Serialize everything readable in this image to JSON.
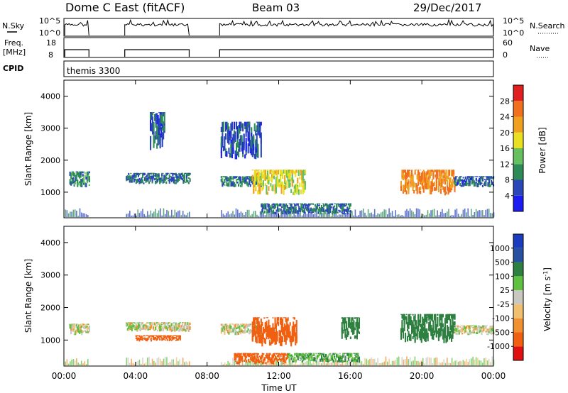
{
  "header": {
    "station": "Dome C East (fitACF)",
    "beam": "Beam 03",
    "date": "29/Dec/2017"
  },
  "top_panels": {
    "nsky_label": "N.Sky",
    "nsky_ticks": [
      "10^5",
      "10^0"
    ],
    "nsearch_label": "N.Search",
    "nsearch_ticks": [
      "10^5",
      "10^0"
    ],
    "freq_label": "Freq.",
    "freq_unit": "[MHz]",
    "freq_ticks": [
      "18",
      "8"
    ],
    "nave_label": "Nave",
    "nave_ticks": [
      "60",
      "0"
    ],
    "cpid_label": "CPID",
    "cpid_value": "themis 3300"
  },
  "colors": {
    "power": [
      "#1c1cf0",
      "#2a46b8",
      "#2e8b57",
      "#66c060",
      "#e8e020",
      "#f0a020",
      "#f07020",
      "#e02020"
    ],
    "velocity": [
      "#e01010",
      "#f06010",
      "#f09030",
      "#f0c070",
      "#c8c8c0",
      "#60c040",
      "#2e8040",
      "#2850a0",
      "#1c3cc0"
    ]
  },
  "chart_data": [
    {
      "type": "heatmap",
      "panel": "power",
      "ylabel": "Slant Range [km]",
      "yticks": [
        "4000",
        "3000",
        "2000",
        "1000"
      ],
      "ylim": [
        200,
        4500
      ],
      "xlim": [
        0,
        24
      ],
      "colorbar_label": "Power [dB]",
      "colorbar_ticks": [
        "28",
        "24",
        "20",
        "16",
        "12",
        "8",
        "4"
      ],
      "colorbar_range": [
        0,
        32
      ],
      "data_gaps_hours": [
        [
          1.4,
          3.4
        ],
        [
          7.0,
          8.7
        ]
      ],
      "echo_regions": [
        {
          "t": [
            0.3,
            1.4
          ],
          "r": [
            1150,
            1650
          ],
          "level": 10
        },
        {
          "t": [
            3.4,
            7.0
          ],
          "r": [
            1250,
            1600
          ],
          "level": 8
        },
        {
          "t": [
            4.8,
            5.6
          ],
          "r": [
            2300,
            3500
          ],
          "level": 7
        },
        {
          "t": [
            8.7,
            11.0
          ],
          "r": [
            1150,
            1500
          ],
          "level": 9
        },
        {
          "t": [
            8.7,
            11.0
          ],
          "r": [
            2000,
            3200
          ],
          "level": 6
        },
        {
          "t": [
            10.5,
            13.5
          ],
          "r": [
            900,
            1700
          ],
          "level": 18
        },
        {
          "t": [
            11.0,
            16.0
          ],
          "r": [
            300,
            650
          ],
          "level": 8
        },
        {
          "t": [
            18.8,
            21.8
          ],
          "r": [
            900,
            1700
          ],
          "level": 24
        },
        {
          "t": [
            21.8,
            24.0
          ],
          "r": [
            1150,
            1500
          ],
          "level": 7
        }
      ]
    },
    {
      "type": "heatmap",
      "panel": "velocity",
      "ylabel": "Slant Range [km]",
      "yticks": [
        "4000",
        "3000",
        "2000",
        "1000"
      ],
      "ylim": [
        200,
        4500
      ],
      "xlim": [
        0,
        24
      ],
      "xlabel": "Time UT",
      "xticks": [
        "00:00",
        "04:00",
        "08:00",
        "12:00",
        "16:00",
        "20:00",
        "00:00"
      ],
      "colorbar_label": "Velocity [m s^-1]",
      "colorbar_ticks": [
        "1000",
        "500",
        "100",
        "25",
        "-25",
        "-100",
        "-500",
        "-1000"
      ],
      "data_gaps_hours": [
        [
          1.4,
          3.4
        ],
        [
          7.0,
          8.7
        ]
      ],
      "echo_regions": [
        {
          "t": [
            0.3,
            1.4
          ],
          "r": [
            1150,
            1500
          ],
          "v": 0
        },
        {
          "t": [
            3.4,
            7.0
          ],
          "r": [
            1250,
            1550
          ],
          "v": 0
        },
        {
          "t": [
            4.0,
            6.5
          ],
          "r": [
            950,
            1150
          ],
          "v": -200
        },
        {
          "t": [
            8.7,
            11.0
          ],
          "r": [
            1150,
            1500
          ],
          "v": 0
        },
        {
          "t": [
            10.5,
            13.0
          ],
          "r": [
            800,
            1700
          ],
          "v": -200
        },
        {
          "t": [
            9.5,
            12.5
          ],
          "r": [
            250,
            600
          ],
          "v": -300
        },
        {
          "t": [
            12.5,
            16.5
          ],
          "r": [
            300,
            600
          ],
          "v": 80
        },
        {
          "t": [
            15.5,
            16.5
          ],
          "r": [
            1000,
            1700
          ],
          "v": 300
        },
        {
          "t": [
            18.8,
            21.8
          ],
          "r": [
            900,
            1800
          ],
          "v": 300
        },
        {
          "t": [
            21.8,
            24.0
          ],
          "r": [
            1150,
            1450
          ],
          "v": 0
        }
      ]
    }
  ]
}
